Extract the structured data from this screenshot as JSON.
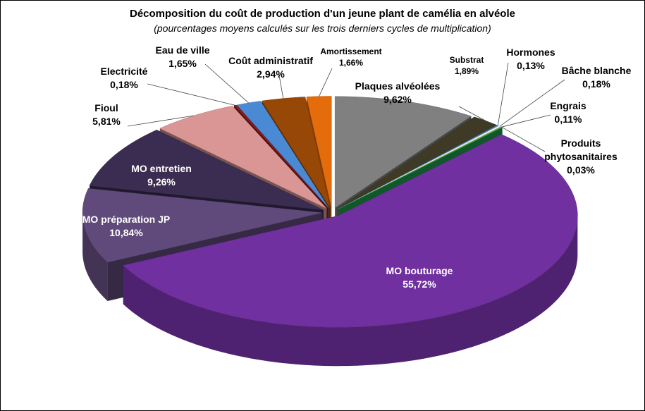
{
  "chart_data": {
    "type": "pie3d",
    "title": "Décomposition du coût de production d'un jeune plant de camélia en alvéole",
    "subtitle": "(pourcentages moyens calculés sur les trois derniers cycles de multiplication)",
    "categories": [
      "Plaques alvéolées",
      "Substrat",
      "Hormones",
      "Bâche blanche",
      "Engrais",
      "Produits phytosanitaires",
      "MO bouturage",
      "MO préparation JP",
      "MO entretien",
      "Fioul",
      "Electricité",
      "Eau de ville",
      "Coût administratif",
      "Amortissement"
    ],
    "values": [
      9.62,
      1.89,
      0.13,
      0.18,
      0.11,
      0.03,
      55.72,
      10.84,
      9.26,
      5.81,
      0.18,
      1.65,
      2.94,
      1.66
    ],
    "value_labels": [
      "9,62%",
      "1,89%",
      "0,13%",
      "0,18%",
      "0,11%",
      "0,03%",
      "55,72%",
      "10,84%",
      "9,26%",
      "5,81%",
      "0,18%",
      "1,65%",
      "2,94%",
      "1,66%"
    ],
    "colors": [
      "#808080",
      "#3f3a25",
      "#4f81bd",
      "#f2f2f2",
      "#77b33d",
      "#1f9f4f",
      "#7030a0",
      "#604a7b",
      "#3b2d51",
      "#d99694",
      "#8b1a1a",
      "#4a8ad4",
      "#974706",
      "#e46c0a"
    ]
  }
}
